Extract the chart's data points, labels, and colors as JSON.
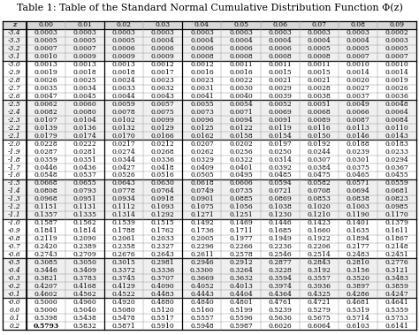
{
  "title": "Table 1: Table of the Standard Normal Cumulative Distribution Function Φ(z)",
  "col_headers": [
    "z",
    "0.00",
    "0.01",
    "0.02",
    "0.03",
    "0.04",
    "0.05",
    "0.06",
    "0.07",
    "0.08",
    "0.09"
  ],
  "row_labels": [
    "-3.4",
    "-3.3",
    "-3.2",
    "-3.1",
    "-3.0",
    "-2.9",
    "-2.8",
    "-2.7",
    "-2.6",
    "-2.5",
    "-2.4",
    "-2.3",
    "-2.2",
    "-2.1",
    "-2.0",
    "-1.9",
    "-1.8",
    "-1.7",
    "-1.6",
    "-1.5",
    "-1.4",
    "-1.3",
    "-1.2",
    "-1.1",
    "-1.0",
    "-0.9",
    "-0.8",
    "-0.7",
    "-0.6",
    "-0.5",
    "-0.4",
    "-0.3",
    "-0.2",
    "-0.1",
    "-0.0",
    "0.0",
    "0.1",
    "0.2"
  ],
  "exact_data": [
    [
      0.0003,
      0.0003,
      0.0003,
      0.0003,
      0.0003,
      0.0003,
      0.0003,
      0.0003,
      0.0003,
      0.0002
    ],
    [
      0.0005,
      0.0005,
      0.0005,
      0.0004,
      0.0004,
      0.0004,
      0.0004,
      0.0004,
      0.0004,
      0.0003
    ],
    [
      0.0007,
      0.0007,
      0.0006,
      0.0006,
      0.0006,
      0.0006,
      0.0006,
      0.0005,
      0.0005,
      0.0005
    ],
    [
      0.001,
      0.0009,
      0.0009,
      0.0009,
      0.0008,
      0.0008,
      0.0008,
      0.0008,
      0.0007,
      0.0007
    ],
    [
      0.0013,
      0.0013,
      0.0013,
      0.0012,
      0.0012,
      0.0011,
      0.0011,
      0.0011,
      0.001,
      0.001
    ],
    [
      0.0019,
      0.0018,
      0.0018,
      0.0017,
      0.0016,
      0.0016,
      0.0015,
      0.0015,
      0.0014,
      0.0014
    ],
    [
      0.0026,
      0.0025,
      0.0024,
      0.0023,
      0.0023,
      0.0022,
      0.0021,
      0.0021,
      0.002,
      0.0019
    ],
    [
      0.0035,
      0.0034,
      0.0033,
      0.0032,
      0.0031,
      0.003,
      0.0029,
      0.0028,
      0.0027,
      0.0026
    ],
    [
      0.0047,
      0.0045,
      0.0044,
      0.0043,
      0.0041,
      0.004,
      0.0039,
      0.0038,
      0.0037,
      0.0036
    ],
    [
      0.0062,
      0.006,
      0.0059,
      0.0057,
      0.0055,
      0.0054,
      0.0052,
      0.0051,
      0.0049,
      0.0048
    ],
    [
      0.0082,
      0.008,
      0.0078,
      0.0075,
      0.0073,
      0.0071,
      0.0069,
      0.0068,
      0.0066,
      0.0064
    ],
    [
      0.0107,
      0.0104,
      0.0102,
      0.0099,
      0.0096,
      0.0094,
      0.0091,
      0.0089,
      0.0087,
      0.0084
    ],
    [
      0.0139,
      0.0136,
      0.0132,
      0.0129,
      0.0125,
      0.0122,
      0.0119,
      0.0116,
      0.0113,
      0.011
    ],
    [
      0.0179,
      0.0174,
      0.017,
      0.0166,
      0.0162,
      0.0158,
      0.0154,
      0.015,
      0.0146,
      0.0143
    ],
    [
      0.0228,
      0.0222,
      0.0217,
      0.0212,
      0.0207,
      0.0202,
      0.0197,
      0.0192,
      0.0188,
      0.0183
    ],
    [
      0.0287,
      0.0281,
      0.0274,
      0.0268,
      0.0262,
      0.0256,
      0.025,
      0.0244,
      0.0239,
      0.0233
    ],
    [
      0.0359,
      0.0351,
      0.0344,
      0.0336,
      0.0329,
      0.0322,
      0.0314,
      0.0307,
      0.0301,
      0.0294
    ],
    [
      0.0446,
      0.0436,
      0.0427,
      0.0418,
      0.0409,
      0.0401,
      0.0392,
      0.0384,
      0.0375,
      0.0367
    ],
    [
      0.0548,
      0.0537,
      0.0526,
      0.0516,
      0.0505,
      0.0495,
      0.0485,
      0.0475,
      0.0465,
      0.0455
    ],
    [
      0.0668,
      0.0655,
      0.0643,
      0.063,
      0.0618,
      0.0606,
      0.0594,
      0.0582,
      0.0571,
      0.0559
    ],
    [
      0.0808,
      0.0793,
      0.0778,
      0.0764,
      0.0749,
      0.0735,
      0.0721,
      0.0708,
      0.0694,
      0.0681
    ],
    [
      0.0968,
      0.0951,
      0.0934,
      0.0918,
      0.0901,
      0.0885,
      0.0869,
      0.0853,
      0.0838,
      0.0823
    ],
    [
      0.1151,
      0.1131,
      0.1112,
      0.1093,
      0.1075,
      0.1056,
      0.1038,
      0.102,
      0.1003,
      0.0985
    ],
    [
      0.1357,
      0.1335,
      0.1314,
      0.1292,
      0.1271,
      0.1251,
      0.123,
      0.121,
      0.119,
      0.117
    ],
    [
      0.1587,
      0.1562,
      0.1539,
      0.1515,
      0.1492,
      0.1469,
      0.1446,
      0.1423,
      0.1401,
      0.1379
    ],
    [
      0.1841,
      0.1814,
      0.1788,
      0.1762,
      0.1736,
      0.1711,
      0.1685,
      0.166,
      0.1635,
      0.1611
    ],
    [
      0.2119,
      0.209,
      0.2061,
      0.2033,
      0.2005,
      0.1977,
      0.1949,
      0.1922,
      0.1894,
      0.1867
    ],
    [
      0.242,
      0.2389,
      0.2358,
      0.2327,
      0.2296,
      0.2266,
      0.2236,
      0.2206,
      0.2177,
      0.2148
    ],
    [
      0.2743,
      0.2709,
      0.2676,
      0.2643,
      0.2611,
      0.2578,
      0.2546,
      0.2514,
      0.2483,
      0.2451
    ],
    [
      0.3085,
      0.305,
      0.3015,
      0.2981,
      0.2946,
      0.2912,
      0.2877,
      0.2843,
      0.281,
      0.2776
    ],
    [
      0.3446,
      0.3409,
      0.3372,
      0.3336,
      0.33,
      0.3264,
      0.3228,
      0.3192,
      0.3156,
      0.3121
    ],
    [
      0.3821,
      0.3783,
      0.3745,
      0.3707,
      0.3669,
      0.3632,
      0.3594,
      0.3557,
      0.352,
      0.3483
    ],
    [
      0.4207,
      0.4168,
      0.4129,
      0.409,
      0.4052,
      0.4013,
      0.3974,
      0.3936,
      0.3897,
      0.3859
    ],
    [
      0.4602,
      0.4562,
      0.4522,
      0.4483,
      0.4443,
      0.4404,
      0.4364,
      0.4325,
      0.4286,
      0.4247
    ],
    [
      0.5,
      0.496,
      0.492,
      0.488,
      0.484,
      0.4801,
      0.4761,
      0.4721,
      0.4681,
      0.4641
    ],
    [
      0.5,
      0.504,
      0.508,
      0.512,
      0.516,
      0.5199,
      0.5239,
      0.5279,
      0.5319,
      0.5359
    ],
    [
      0.5398,
      0.5438,
      0.5478,
      0.5517,
      0.5557,
      0.5596,
      0.5636,
      0.5675,
      0.5714,
      0.5753
    ],
    [
      0.5793,
      0.5832,
      0.5871,
      0.591,
      0.5948,
      0.5987,
      0.6026,
      0.6064,
      0.6103,
      0.6141
    ]
  ],
  "bold_cell_row": 37,
  "bold_cell_col": 0,
  "group_separators_after": [
    4,
    9,
    14,
    19,
    24,
    29,
    34
  ],
  "font_size": 5.5,
  "title_font_size": 8.0,
  "background_color": "#ffffff"
}
